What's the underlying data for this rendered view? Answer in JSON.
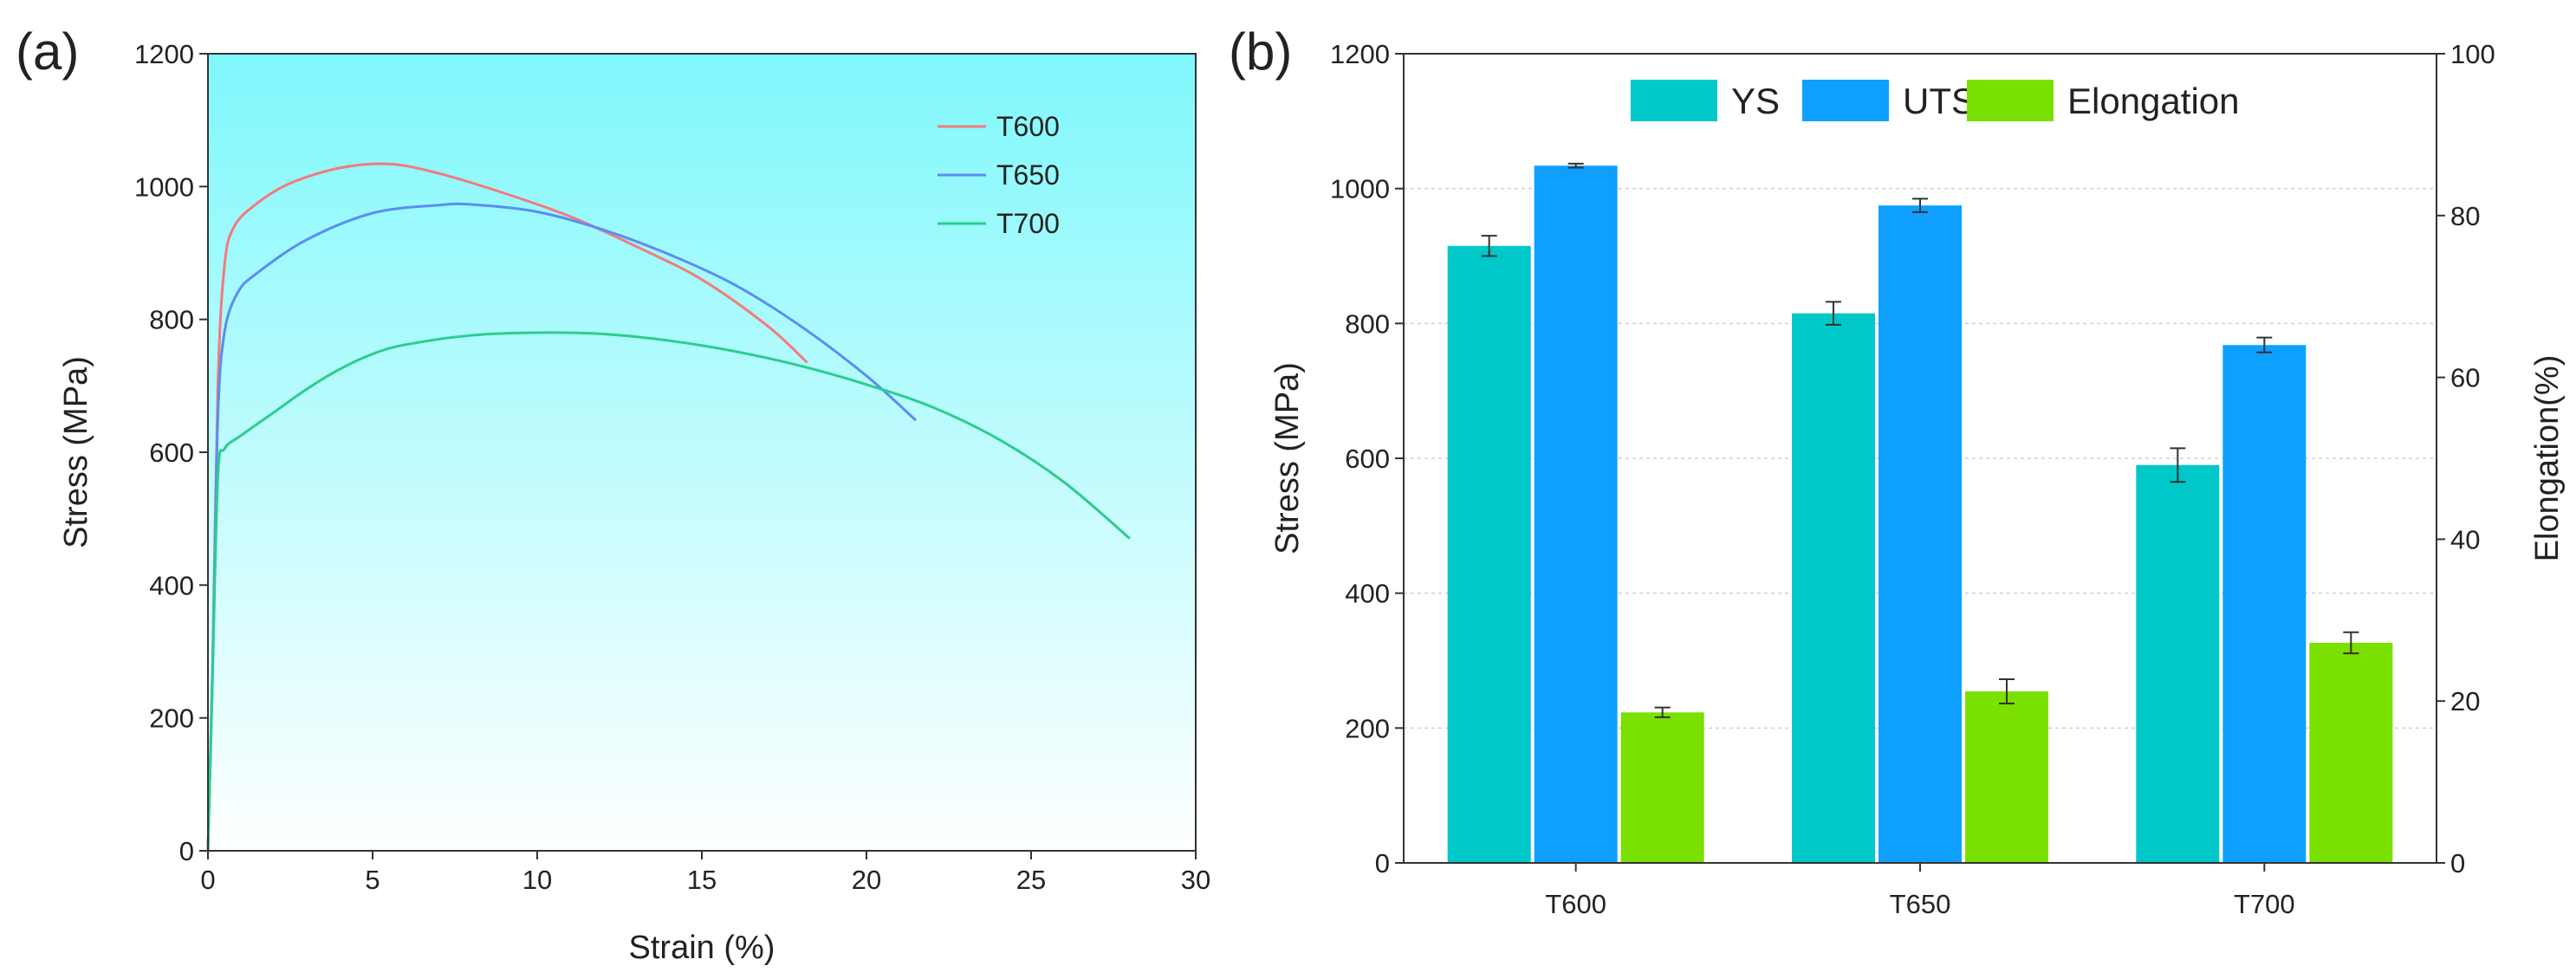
{
  "chart_data": [
    {
      "panel_label": "(a)",
      "type": "line",
      "xlabel": "Strain (%)",
      "ylabel": "Stress (MPa)",
      "xlim": [
        0,
        30
      ],
      "ylim": [
        0,
        1200
      ],
      "x_ticks": [
        "0",
        "5",
        "10",
        "15",
        "20",
        "25",
        "30"
      ],
      "y_ticks": [
        "0",
        "200",
        "400",
        "600",
        "800",
        "1000",
        "1200"
      ],
      "background": "gradient cyan to white",
      "legend_position": "top-right",
      "series": [
        {
          "name": "T600",
          "color": "#f47a7a",
          "points": [
            [
              0,
              0
            ],
            [
              0.15,
              300
            ],
            [
              0.3,
              700
            ],
            [
              0.5,
              880
            ],
            [
              0.8,
              940
            ],
            [
              1.5,
              975
            ],
            [
              2.5,
              1005
            ],
            [
              4,
              1028
            ],
            [
              5.5,
              1034
            ],
            [
              7,
              1020
            ],
            [
              9,
              990
            ],
            [
              11,
              955
            ],
            [
              13,
              910
            ],
            [
              15,
              860
            ],
            [
              17,
              790
            ],
            [
              18.2,
              735
            ]
          ]
        },
        {
          "name": "T650",
          "color": "#5b8df0",
          "points": [
            [
              0,
              0
            ],
            [
              0.15,
              300
            ],
            [
              0.3,
              650
            ],
            [
              0.5,
              780
            ],
            [
              0.9,
              840
            ],
            [
              1.5,
              870
            ],
            [
              3,
              920
            ],
            [
              5,
              960
            ],
            [
              7,
              972
            ],
            [
              8,
              973
            ],
            [
              10,
              962
            ],
            [
              12,
              935
            ],
            [
              14,
              898
            ],
            [
              16,
              852
            ],
            [
              18,
              790
            ],
            [
              20,
              715
            ],
            [
              21.5,
              648
            ]
          ]
        },
        {
          "name": "T700",
          "color": "#2ecc8e",
          "points": [
            [
              0,
              0
            ],
            [
              0.12,
              220
            ],
            [
              0.3,
              560
            ],
            [
              0.5,
              605
            ],
            [
              1,
              625
            ],
            [
              2,
              660
            ],
            [
              3,
              695
            ],
            [
              4,
              725
            ],
            [
              5,
              748
            ],
            [
              6,
              762
            ],
            [
              8,
              776
            ],
            [
              10,
              780
            ],
            [
              12,
              778
            ],
            [
              14,
              768
            ],
            [
              16,
              752
            ],
            [
              18,
              730
            ],
            [
              20,
              702
            ],
            [
              22,
              668
            ],
            [
              24,
              620
            ],
            [
              26,
              555
            ],
            [
              28,
              470
            ]
          ]
        }
      ]
    },
    {
      "panel_label": "(b)",
      "type": "bar",
      "categories": [
        "T600",
        "T650",
        "T700"
      ],
      "ylabel": "Stress (MPa)",
      "y2label": "Elongation(%)",
      "ylim": [
        0,
        1200
      ],
      "y2lim": [
        0,
        100
      ],
      "y_ticks": [
        "0",
        "200",
        "400",
        "600",
        "800",
        "1000",
        "1200"
      ],
      "y2_ticks": [
        "0",
        "20",
        "40",
        "60",
        "80",
        "100"
      ],
      "legend_position": "top",
      "series": [
        {
          "name": "YS",
          "axis": "left",
          "color": "#00c8c8",
          "values": [
            915,
            815,
            590
          ],
          "errors": [
            15,
            17,
            25
          ]
        },
        {
          "name": "UTS",
          "axis": "left",
          "color": "#0fa0ff",
          "values": [
            1034,
            975,
            768
          ],
          "errors": [
            3,
            10,
            11
          ]
        },
        {
          "name": "Elongation",
          "axis": "right",
          "color": "#7ae000",
          "values": [
            18.6,
            21.2,
            27.2
          ],
          "errors": [
            0.6,
            1.5,
            1.3
          ]
        }
      ]
    }
  ]
}
